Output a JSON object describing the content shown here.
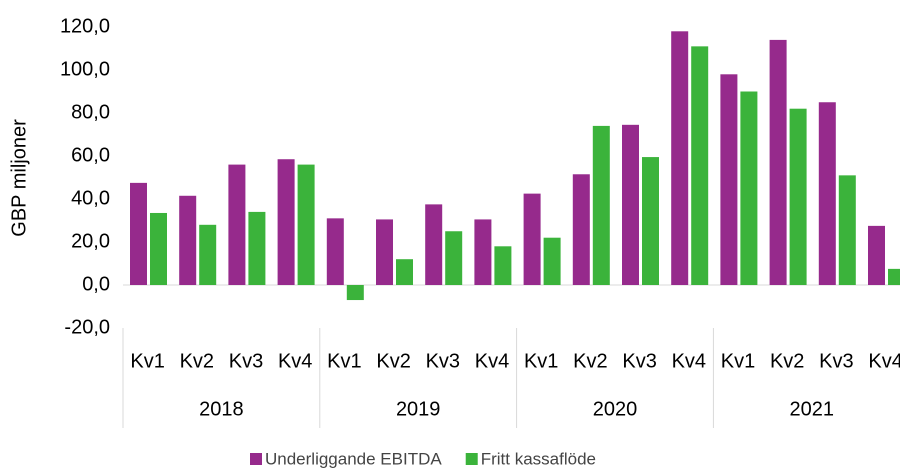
{
  "chart_data": {
    "type": "bar",
    "y_label": "GBP miljoner",
    "categories": [
      "Kv1",
      "Kv2",
      "Kv3",
      "Kv4",
      "Kv1",
      "Kv2",
      "Kv3",
      "Kv4",
      "Kv1",
      "Kv2",
      "Kv3",
      "Kv4",
      "Kv1",
      "Kv2",
      "Kv3",
      "Kv4"
    ],
    "groups": [
      "2018",
      "2019",
      "2020",
      "2021"
    ],
    "series": [
      {
        "name": "Underliggande EBITDA",
        "color": "#962a8c",
        "values": [
          47.5,
          41.5,
          56,
          58.5,
          31,
          30.5,
          37.5,
          30.5,
          42.5,
          51.5,
          74.5,
          118,
          98,
          114,
          85,
          27.5
        ]
      },
      {
        "name": "Fritt kassaflöde",
        "color": "#3bb33b",
        "values": [
          33.5,
          28,
          34,
          56,
          -7,
          12,
          25,
          18,
          22,
          74,
          59.5,
          111,
          90,
          82,
          51,
          7.5
        ]
      }
    ],
    "ylim": [
      -20,
      120
    ],
    "yticks": [
      {
        "value": -20,
        "label": "-20,0"
      },
      {
        "value": 0,
        "label": "0,0"
      },
      {
        "value": 20,
        "label": "20,0"
      },
      {
        "value": 40,
        "label": "40,0"
      },
      {
        "value": 60,
        "label": "60,0"
      },
      {
        "value": 80,
        "label": "80,0"
      },
      {
        "value": 100,
        "label": "100,0"
      },
      {
        "value": 120,
        "label": "120,0"
      }
    ],
    "grid": false
  }
}
